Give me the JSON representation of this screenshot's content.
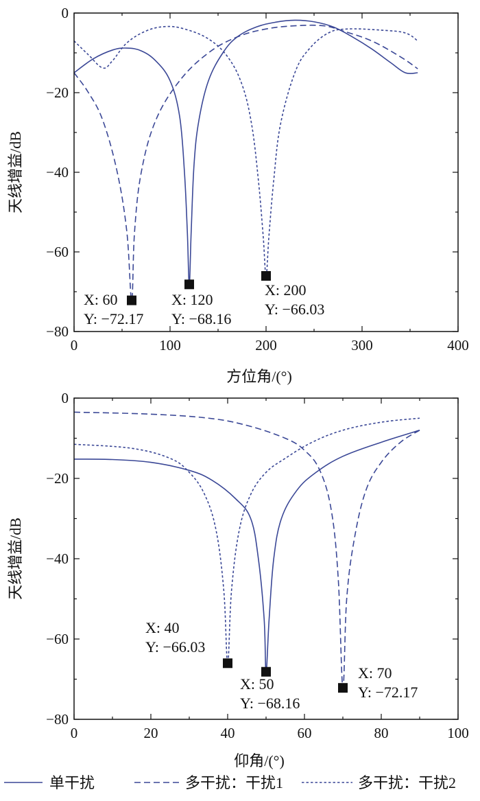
{
  "style": {
    "line_color": "#3a4796",
    "marker_color": "#111111"
  },
  "legend": [
    {
      "label": "单干扰",
      "dash": "solid"
    },
    {
      "label": "多干扰：干扰1",
      "dash": "dashed"
    },
    {
      "label": "多干扰：干扰2",
      "dash": "dotted"
    }
  ],
  "chart_data": [
    {
      "type": "line",
      "xlabel": "方位角/(°)",
      "ylabel": "天线增益/dB",
      "xlim": [
        0,
        400
      ],
      "ylim": [
        -80,
        0
      ],
      "xticks": [
        0,
        100,
        200,
        300,
        400
      ],
      "yticks": [
        0,
        -20,
        -40,
        -60,
        -80
      ],
      "series": [
        {
          "name": "单干扰",
          "dash": "solid",
          "points": [
            [
              0,
              -15
            ],
            [
              20,
              -11.5
            ],
            [
              40,
              -9.3
            ],
            [
              55,
              -8.8
            ],
            [
              70,
              -9.5
            ],
            [
              85,
              -12
            ],
            [
              100,
              -17
            ],
            [
              110,
              -26
            ],
            [
              115,
              -40
            ],
            [
              118,
              -55
            ],
            [
              120,
              -68.16
            ],
            [
              122,
              -55
            ],
            [
              125,
              -38
            ],
            [
              130,
              -27
            ],
            [
              140,
              -17
            ],
            [
              155,
              -10
            ],
            [
              170,
              -6
            ],
            [
              190,
              -3.5
            ],
            [
              210,
              -2.3
            ],
            [
              230,
              -1.8
            ],
            [
              250,
              -2.2
            ],
            [
              270,
              -3.5
            ],
            [
              290,
              -6
            ],
            [
              310,
              -9
            ],
            [
              330,
              -12.5
            ],
            [
              345,
              -15
            ],
            [
              358,
              -15
            ]
          ]
        },
        {
          "name": "多干扰：干扰1",
          "dash": "dashed",
          "points": [
            [
              0,
              -15
            ],
            [
              15,
              -20
            ],
            [
              30,
              -27
            ],
            [
              45,
              -40
            ],
            [
              55,
              -55
            ],
            [
              60,
              -72.17
            ],
            [
              63,
              -55
            ],
            [
              70,
              -40
            ],
            [
              85,
              -27
            ],
            [
              110,
              -17
            ],
            [
              140,
              -10
            ],
            [
              170,
              -6
            ],
            [
              200,
              -4
            ],
            [
              230,
              -3.2
            ],
            [
              260,
              -3.2
            ],
            [
              280,
              -4.5
            ],
            [
              310,
              -7
            ],
            [
              340,
              -11
            ],
            [
              358,
              -14
            ]
          ]
        },
        {
          "name": "多干扰：干扰2",
          "dash": "dotted",
          "points": [
            [
              0,
              -7
            ],
            [
              15,
              -10.5
            ],
            [
              30,
              -13.8
            ],
            [
              40,
              -12
            ],
            [
              55,
              -7.5
            ],
            [
              75,
              -4.5
            ],
            [
              95,
              -3.4
            ],
            [
              115,
              -4
            ],
            [
              140,
              -6.5
            ],
            [
              160,
              -11
            ],
            [
              175,
              -18
            ],
            [
              185,
              -28
            ],
            [
              192,
              -42
            ],
            [
              197,
              -56
            ],
            [
              200,
              -66.03
            ],
            [
              203,
              -56
            ],
            [
              208,
              -42
            ],
            [
              215,
              -28
            ],
            [
              230,
              -15
            ],
            [
              245,
              -9
            ],
            [
              265,
              -5
            ],
            [
              285,
              -4
            ],
            [
              320,
              -4.3
            ],
            [
              345,
              -5
            ],
            [
              358,
              -7
            ]
          ]
        }
      ],
      "annotations": [
        {
          "x": 60,
          "y": -72.17,
          "x_text": "X: 60",
          "y_text": "Y: −72.17"
        },
        {
          "x": 120,
          "y": -68.16,
          "x_text": "X: 120",
          "y_text": "Y: −68.16"
        },
        {
          "x": 200,
          "y": -66.03,
          "x_text": "X: 200",
          "y_text": "Y: −66.03"
        }
      ]
    },
    {
      "type": "line",
      "xlabel": "仰角/(°)",
      "ylabel": "天线增益/dB",
      "xlim": [
        0,
        100
      ],
      "ylim": [
        -80,
        0
      ],
      "xticks": [
        0,
        20,
        40,
        60,
        80,
        100
      ],
      "yticks": [
        0,
        -20,
        -40,
        -60,
        -80
      ],
      "series": [
        {
          "name": "单干扰",
          "dash": "solid",
          "points": [
            [
              0,
              -15.2
            ],
            [
              10,
              -15.3
            ],
            [
              20,
              -16
            ],
            [
              30,
              -18
            ],
            [
              36,
              -20.5
            ],
            [
              42,
              -25
            ],
            [
              46,
              -30
            ],
            [
              48,
              -40
            ],
            [
              49.5,
              -55
            ],
            [
              50,
              -68.16
            ],
            [
              50.8,
              -55
            ],
            [
              52,
              -40
            ],
            [
              54,
              -30
            ],
            [
              58,
              -23
            ],
            [
              63,
              -18.5
            ],
            [
              70,
              -14.5
            ],
            [
              80,
              -11
            ],
            [
              90,
              -8
            ]
          ]
        },
        {
          "name": "多干扰：干扰1",
          "dash": "dashed",
          "points": [
            [
              0,
              -3.5
            ],
            [
              20,
              -4
            ],
            [
              35,
              -5
            ],
            [
              45,
              -6.8
            ],
            [
              55,
              -10
            ],
            [
              60,
              -13
            ],
            [
              64,
              -18
            ],
            [
              67,
              -28
            ],
            [
              68.8,
              -45
            ],
            [
              70,
              -72.17
            ],
            [
              71,
              -50
            ],
            [
              73,
              -35
            ],
            [
              76,
              -23
            ],
            [
              80,
              -16
            ],
            [
              85,
              -11
            ],
            [
              90,
              -8
            ]
          ]
        },
        {
          "name": "多干扰：干扰2",
          "dash": "dotted",
          "points": [
            [
              0,
              -11.5
            ],
            [
              15,
              -12.5
            ],
            [
              25,
              -15
            ],
            [
              30,
              -18.5
            ],
            [
              34,
              -24
            ],
            [
              37,
              -33
            ],
            [
              39,
              -48
            ],
            [
              40,
              -66.03
            ],
            [
              41,
              -48
            ],
            [
              43,
              -33
            ],
            [
              46,
              -24
            ],
            [
              50,
              -18.5
            ],
            [
              55,
              -15
            ],
            [
              62,
              -11
            ],
            [
              70,
              -8
            ],
            [
              80,
              -6
            ],
            [
              90,
              -5
            ]
          ]
        }
      ],
      "annotations": [
        {
          "x": 40,
          "y": -66.03,
          "x_text": "X: 40",
          "y_text": "Y: −66.03"
        },
        {
          "x": 50,
          "y": -68.16,
          "x_text": "X: 50",
          "y_text": "Y: −68.16"
        },
        {
          "x": 70,
          "y": -72.17,
          "x_text": "X: 70",
          "y_text": "Y: −72.17"
        }
      ]
    }
  ]
}
